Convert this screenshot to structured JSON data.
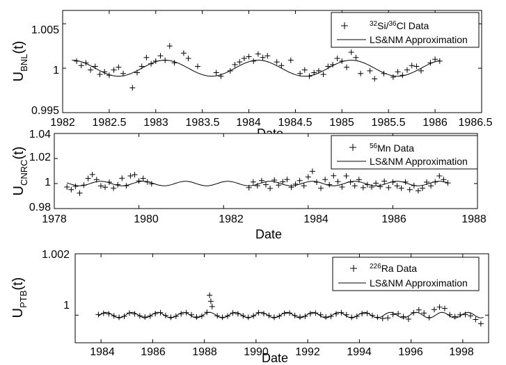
{
  "chart_data": [
    {
      "type": "scatter",
      "panel": "BNL",
      "xlabel": "Date",
      "ylabel_main": "U",
      "ylabel_sub": "BNL",
      "ylabel_suffix": "(t)",
      "xlim": [
        1982,
        1986.5
      ],
      "ylim": [
        0.995,
        1.0065
      ],
      "xticks": [
        1982,
        1982.5,
        1983,
        1983.5,
        1984,
        1984.5,
        1985,
        1985.5,
        1986,
        1986.5
      ],
      "xtick_labels": [
        "1982",
        "1982.5",
        "1983",
        "1983.5",
        "1984",
        "1984.5",
        "1985",
        "1985.5",
        "1986",
        "1986.5"
      ],
      "yticks": [
        0.995,
        1,
        1.005
      ],
      "ytick_labels": [
        "0.995",
        "1",
        "1.005"
      ],
      "legend": {
        "position": "top-right",
        "data_label_sup1": "32",
        "data_label_mid": "Si/",
        "data_label_sup2": "36",
        "data_label_end": "Cl Data",
        "fit_label": "LS&NM Approximation"
      },
      "model": {
        "mean": 1.0,
        "amplitude": 0.0009,
        "period": 1.0,
        "peak": 1984.1,
        "x_range": [
          1982.1,
          1986.05
        ]
      },
      "series": [
        {
          "name": "32Si/36Cl Data",
          "x": [
            1982.15,
            1982.2,
            1982.25,
            1982.3,
            1982.35,
            1982.4,
            1982.45,
            1982.5,
            1982.55,
            1982.6,
            1982.65,
            1982.75,
            1982.8,
            1982.85,
            1982.9,
            1982.95,
            1983.0,
            1983.05,
            1983.1,
            1983.15,
            1983.2,
            1983.3,
            1983.35,
            1983.45,
            1983.65,
            1983.7,
            1983.8,
            1983.85,
            1983.9,
            1983.95,
            1984.0,
            1984.05,
            1984.1,
            1984.15,
            1984.2,
            1984.3,
            1984.35,
            1984.45,
            1984.55,
            1984.6,
            1984.65,
            1984.7,
            1984.75,
            1984.8,
            1984.85,
            1984.9,
            1984.95,
            1985.0,
            1985.05,
            1985.1,
            1985.15,
            1985.2,
            1985.3,
            1985.35,
            1985.45,
            1985.55,
            1985.6,
            1985.65,
            1985.7,
            1985.75,
            1985.8,
            1985.85,
            1985.95,
            1986.0,
            1986.05
          ],
          "y": [
            1.0008,
            1.0003,
            1.0006,
            0.9998,
            1.0002,
            0.9993,
            0.9996,
            0.9992,
            0.9998,
            1.0001,
            0.9994,
            0.9978,
            0.9995,
            1.0002,
            1.0012,
            1.0005,
            1.0008,
            1.0014,
            1.0009,
            1.0025,
            1.0006,
            1.0017,
            1.0011,
            1.0002,
            0.9995,
            0.9991,
            0.9997,
            1.0004,
            1.0007,
            1.0011,
            1.0013,
            1.0008,
            1.0016,
            1.0012,
            1.0014,
            1.0007,
            1.0003,
            1.0009,
            0.9994,
            0.9998,
            0.9991,
            0.9995,
            0.9997,
            0.9993,
            1.0002,
            1.0004,
            1.0011,
            1.0008,
            1.0001,
            1.0018,
            1.0012,
            0.9994,
            0.9997,
            0.9988,
            0.9994,
            0.999,
            0.9996,
            0.9992,
            0.9998,
            1.0003,
            1.0002,
            0.9997,
            1.0006,
            1.001,
            1.0008
          ]
        }
      ]
    },
    {
      "type": "scatter",
      "panel": "CNRC",
      "xlabel": "Date",
      "ylabel_main": "U",
      "ylabel_sub": "CNRC",
      "ylabel_suffix": "(t)",
      "xlim": [
        1978,
        1988
      ],
      "ylim": [
        0.98,
        1.04
      ],
      "xticks": [
        1978,
        1980,
        1982,
        1984,
        1986,
        1988
      ],
      "xtick_labels": [
        "1978",
        "1980",
        "1982",
        "1984",
        "1986",
        "1988"
      ],
      "yticks": [
        0.98,
        1,
        1.02,
        1.04
      ],
      "ytick_labels": [
        "0.98",
        "1",
        "1.02",
        "1.04"
      ],
      "legend": {
        "position": "top-right",
        "data_label_sup1": "56",
        "data_label_end": "Mn Data",
        "fit_label": "LS&NM Approximation"
      },
      "model": {
        "mean": 1.0,
        "amplitude": 0.0018,
        "period": 1.0,
        "peak": 1980.1,
        "x_range": [
          1978.3,
          1987.3
        ]
      },
      "series": [
        {
          "name": "56Mn Data",
          "x": [
            1978.3,
            1978.4,
            1978.5,
            1978.6,
            1978.7,
            1978.8,
            1978.9,
            1979.0,
            1979.1,
            1979.2,
            1979.3,
            1979.4,
            1979.5,
            1979.6,
            1979.7,
            1979.8,
            1979.9,
            1980.0,
            1980.1,
            1980.2,
            1980.3,
            1982.6,
            1982.7,
            1982.8,
            1982.9,
            1983.0,
            1983.1,
            1983.2,
            1983.3,
            1983.4,
            1983.5,
            1983.6,
            1983.7,
            1983.8,
            1983.9,
            1984.0,
            1984.1,
            1984.2,
            1984.3,
            1984.4,
            1984.5,
            1984.6,
            1984.7,
            1984.8,
            1984.9,
            1985.0,
            1985.1,
            1985.2,
            1985.3,
            1985.4,
            1985.5,
            1985.6,
            1985.7,
            1985.8,
            1985.9,
            1986.0,
            1986.1,
            1986.2,
            1986.3,
            1986.4,
            1986.5,
            1986.6,
            1986.7,
            1986.8,
            1986.9,
            1987.0,
            1987.1,
            1987.2,
            1987.3
          ],
          "y": [
            0.9972,
            0.9951,
            0.9978,
            0.9924,
            0.9988,
            1.0041,
            1.0072,
            1.0031,
            0.9981,
            0.9971,
            1.0011,
            0.9962,
            0.9991,
            1.0042,
            0.9982,
            1.0061,
            1.0071,
            1.0021,
            1.0041,
            1.0012,
            0.9998,
            0.9967,
            1.0012,
            0.9983,
            1.0024,
            0.9991,
            0.9961,
            1.0028,
            0.9987,
            1.0014,
            1.0033,
            0.9971,
            0.9995,
            1.0024,
            0.9982,
            1.0052,
            1.0098,
            1.0011,
            0.9963,
            1.0032,
            0.9991,
            1.0063,
            1.0015,
            0.9972,
            1.0061,
            1.0012,
            0.9982,
            1.0031,
            0.9967,
            0.9991,
            0.9972,
            1.0003,
            0.9975,
            1.0019,
            0.9967,
            1.0011,
            0.9981,
            0.9962,
            1.0012,
            0.9951,
            0.9984,
            0.9942,
            0.9963,
            1.0011,
            0.9981,
            1.0012,
            1.0061,
            1.0032,
            1.0005
          ]
        }
      ]
    },
    {
      "type": "scatter",
      "panel": "PTB",
      "xlabel": "Date",
      "ylabel_main": "U",
      "ylabel_sub": "PTB",
      "ylabel_suffix": "(t)",
      "xlim": [
        1983,
        1999
      ],
      "ylim": [
        0.9991,
        1.002
      ],
      "xticks": [
        1984,
        1986,
        1988,
        1990,
        1992,
        1994,
        1996,
        1998
      ],
      "xtick_labels": [
        "1984",
        "1986",
        "1988",
        "1990",
        "1992",
        "1994",
        "1996",
        "1998"
      ],
      "yticks": [
        1,
        1.002
      ],
      "ytick_labels": [
        "1",
        "1.002"
      ],
      "legend": {
        "position": "top-right",
        "data_label_sup1": "226",
        "data_label_end": "Ra Data",
        "fit_label": "LS&NM Approximation"
      },
      "model": {
        "mean": 1.0,
        "amplitude": 9e-05,
        "period": 1.0,
        "peak": 1984.2,
        "x_range": [
          1983.9,
          1998.8
        ]
      },
      "series": [
        {
          "name": "226Ra Data",
          "x": [
            1983.9,
            1984.1,
            1984.3,
            1984.5,
            1984.7,
            1984.9,
            1985.1,
            1985.3,
            1985.5,
            1985.7,
            1985.9,
            1986.1,
            1986.3,
            1986.5,
            1986.7,
            1986.9,
            1987.1,
            1987.3,
            1987.5,
            1987.7,
            1987.9,
            1988.1,
            1988.2,
            1988.25,
            1988.3,
            1988.5,
            1988.7,
            1988.9,
            1989.1,
            1989.3,
            1989.5,
            1989.7,
            1989.9,
            1990.1,
            1990.3,
            1990.5,
            1990.7,
            1990.9,
            1991.1,
            1991.3,
            1991.5,
            1991.7,
            1991.9,
            1992.1,
            1992.3,
            1992.5,
            1992.7,
            1992.9,
            1993.1,
            1993.3,
            1993.5,
            1993.7,
            1993.9,
            1994.1,
            1994.3,
            1994.5,
            1994.7,
            1994.9,
            1995.1,
            1995.3,
            1995.5,
            1995.7,
            1995.9,
            1996.1,
            1996.3,
            1996.5,
            1996.7,
            1996.9,
            1997.1,
            1997.3,
            1997.5,
            1997.7,
            1997.9,
            1998.1,
            1998.3,
            1998.5,
            1998.7
          ],
          "y": [
            1.00002,
            1.00006,
            1.00004,
            0.99998,
            0.99993,
            0.99996,
            1.00007,
            1.00004,
            0.99998,
            0.99994,
            0.99997,
            1.00005,
            1.00008,
            0.99999,
            0.99993,
            0.99996,
            1.00004,
            1.00008,
            1.00001,
            0.99994,
            0.99997,
            1.00009,
            1.00065,
            1.00045,
            1.00028,
            0.99998,
            0.99993,
            0.99997,
            1.00007,
            1.00004,
            0.99998,
            0.99993,
            0.99998,
            1.00008,
            1.00005,
            0.99999,
            0.99993,
            0.99997,
            1.00006,
            1.00007,
            0.99999,
            0.99994,
            0.99996,
            1.00005,
            1.00007,
            1.00001,
            0.99994,
            0.99996,
            1.00004,
            1.00008,
            1.00001,
            0.99993,
            0.99996,
            1.00005,
            1.00006,
            0.99999,
            0.99993,
            0.99989,
            0.99991,
            1.00002,
            1.00005,
            0.99995,
            0.99987,
            1.00008,
            1.00017,
            1.00007,
            0.99992,
            1.00018,
            1.00026,
            1.00022,
            1.00001,
            0.99995,
            1.00001,
            1.00002,
            0.99998,
            0.99986,
            0.99972
          ]
        }
      ]
    }
  ]
}
